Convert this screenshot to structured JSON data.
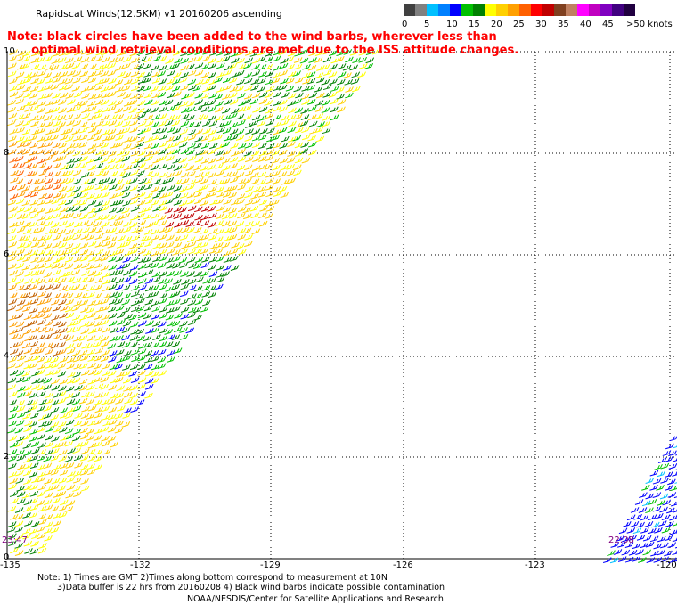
{
  "title": "Rapidscat Winds(12.5KM) v1 20160206 ascending",
  "note": "Note: black circles have been added to the wind barbs, wherever less than\n      optimal wind retrieval conditions are met due to the ISS attitude changes.",
  "legend": {
    "colors": [
      "#404040",
      "#808080",
      "#00c0ff",
      "#0080ff",
      "#0000ff",
      "#00c000",
      "#008000",
      "#ffff00",
      "#ffd000",
      "#ffa000",
      "#ff6000",
      "#ff0000",
      "#c00000",
      "#804020",
      "#c08060",
      "#ff00ff",
      "#c000c0",
      "#8000c0",
      "#400080",
      "#200040"
    ],
    "labels": [
      "0",
      "5",
      "10",
      "15",
      "20",
      "25",
      "30",
      "35",
      "40",
      "45",
      ">50 knots"
    ]
  },
  "axes": {
    "x_ticks": [
      "-135",
      "-132",
      "-129",
      "-126",
      "-123",
      "-120"
    ],
    "y_ticks": [
      "10",
      "8",
      "6",
      "4",
      "2",
      "0"
    ]
  },
  "time_labels": [
    "23:47",
    "22:08"
  ],
  "bottom_note_1": "Note: 1) Times are GMT 2)Times along bottom correspond to measurement at 10N",
  "bottom_note_2": "3)Data buffer is 22 hrs from 20160208 4) Black wind barbs indicate possible contamination",
  "credit": "NOAA/NESDIS/Center for Satellite Applications and Research"
}
